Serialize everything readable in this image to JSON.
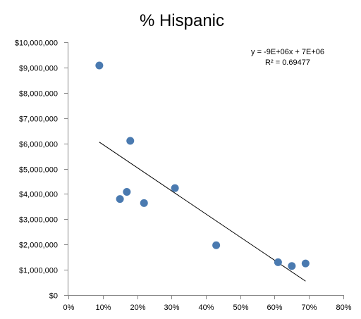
{
  "chart_data": {
    "type": "scatter",
    "title": "% Hispanic",
    "xlabel": "",
    "ylabel": "",
    "xlim": [
      0,
      0.8
    ],
    "ylim": [
      0,
      10000000
    ],
    "x_ticks": [
      0,
      0.1,
      0.2,
      0.3,
      0.4,
      0.5,
      0.6,
      0.7,
      0.8
    ],
    "x_tick_labels": [
      "0%",
      "10%",
      "20%",
      "30%",
      "40%",
      "50%",
      "60%",
      "70%",
      "80%"
    ],
    "y_ticks": [
      0,
      1000000,
      2000000,
      3000000,
      4000000,
      5000000,
      6000000,
      7000000,
      8000000,
      9000000,
      10000000
    ],
    "y_tick_labels": [
      "$0",
      "$1,000,000",
      "$2,000,000",
      "$3,000,000",
      "$4,000,000",
      "$5,000,000",
      "$6,000,000",
      "$7,000,000",
      "$8,000,000",
      "$9,000,000",
      "$10,000,000"
    ],
    "grid": false,
    "legend": "none",
    "point_color": "#4a7ab0",
    "points": [
      {
        "x": 0.09,
        "y": 9080000
      },
      {
        "x": 0.15,
        "y": 3800000
      },
      {
        "x": 0.17,
        "y": 4080000
      },
      {
        "x": 0.18,
        "y": 6100000
      },
      {
        "x": 0.22,
        "y": 3640000
      },
      {
        "x": 0.31,
        "y": 4230000
      },
      {
        "x": 0.43,
        "y": 1970000
      },
      {
        "x": 0.61,
        "y": 1300000
      },
      {
        "x": 0.65,
        "y": 1150000
      },
      {
        "x": 0.69,
        "y": 1250000
      }
    ],
    "trendline": {
      "type": "linear",
      "x_range": [
        0.09,
        0.69
      ],
      "y_range": [
        6050000,
        550000
      ],
      "equation": "y = -9E+06x + 7E+06",
      "r_squared": "R² = 0.69477"
    }
  }
}
